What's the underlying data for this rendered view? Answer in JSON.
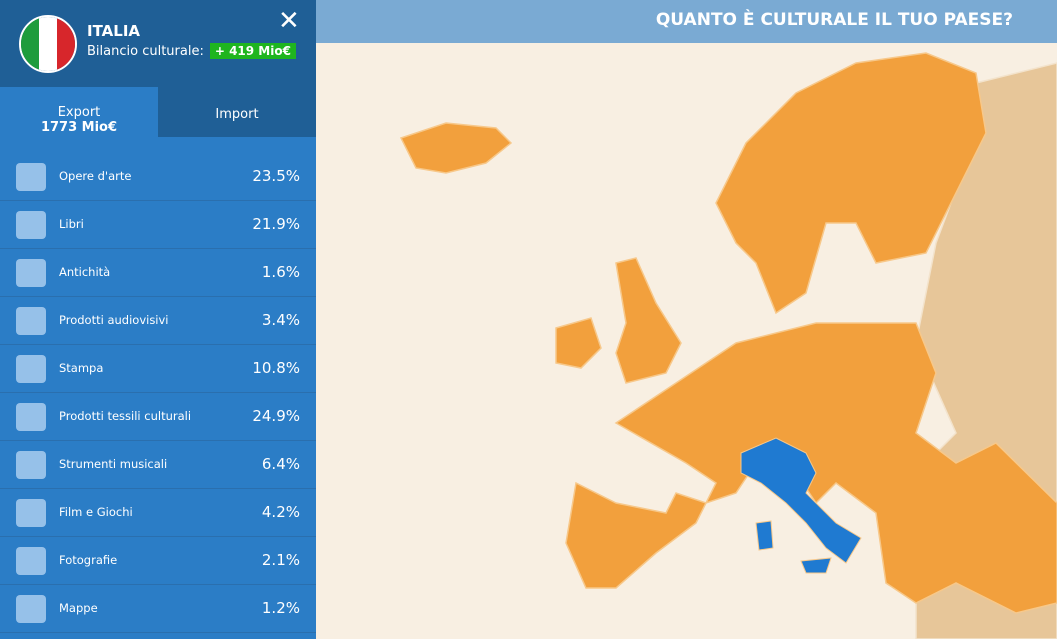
{
  "header": {
    "country": "ITALIA",
    "balance_label": "Bilancio culturale:",
    "balance_value": "+ 419 Mio€"
  },
  "tabs": {
    "export": {
      "label": "Export",
      "total": "1773 Mio€"
    },
    "import": {
      "label": "Import"
    }
  },
  "title": "QUANTO È CULTURALE IL TUO PAESE?",
  "list": [
    {
      "label": "Opere d'arte",
      "value": "23.5%"
    },
    {
      "label": "Libri",
      "value": "21.9%"
    },
    {
      "label": "Antichità",
      "value": "1.6%"
    },
    {
      "label": "Prodotti audiovisivi",
      "value": "3.4%"
    },
    {
      "label": "Stampa",
      "value": "10.8%"
    },
    {
      "label": "Prodotti tessili culturali",
      "value": "24.9%"
    },
    {
      "label": "Strumenti musicali",
      "value": "6.4%"
    },
    {
      "label": "Film e Giochi",
      "value": "4.2%"
    },
    {
      "label": "Fotografie",
      "value": "2.1%"
    },
    {
      "label": "Mappe",
      "value": "1.2%"
    }
  ]
}
